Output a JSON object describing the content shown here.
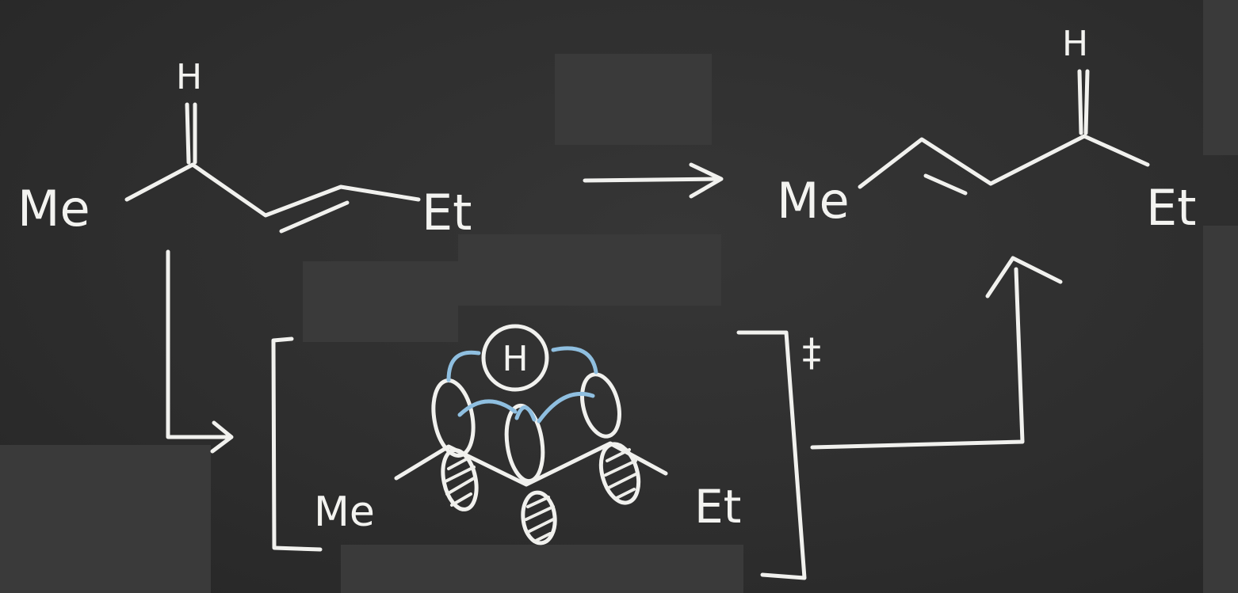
{
  "reactant": {
    "left_group": "Me",
    "right_group": "Et",
    "migrating_atom": "H"
  },
  "product": {
    "left_group": "Me",
    "right_group": "Et",
    "migrating_atom": "H"
  },
  "transition_state": {
    "left_group": "Me",
    "right_group": "Et",
    "center_atom": "H",
    "symbol": "‡"
  },
  "colors": {
    "board": "#2e2e2e",
    "chalk": "#f1f1ee",
    "orbital_lobes_blue": "#8fbfe0"
  }
}
